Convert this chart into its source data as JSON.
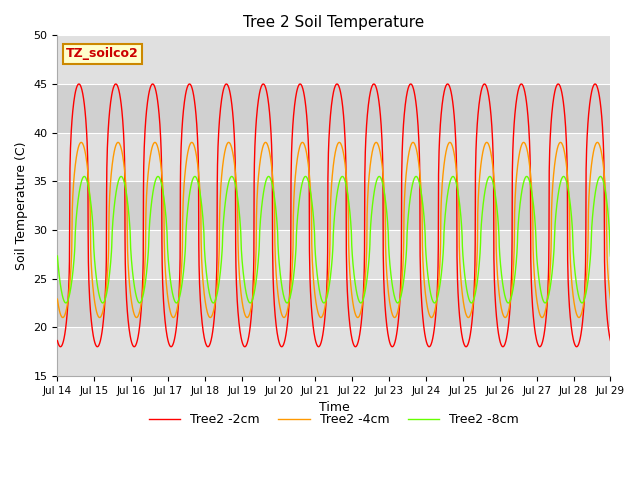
{
  "title": "Tree 2 Soil Temperature",
  "xlabel": "Time",
  "ylabel": "Soil Temperature (C)",
  "ylim": [
    15,
    50
  ],
  "yticks": [
    15,
    20,
    25,
    30,
    35,
    40,
    45,
    50
  ],
  "annotation_text": "TZ_soilco2",
  "annotation_bg": "#ffffcc",
  "annotation_border": "#cc8800",
  "annotation_text_color": "#cc0000",
  "line_colors": [
    "#ff0000",
    "#ff9900",
    "#66ff00"
  ],
  "line_labels": [
    "Tree2 -2cm",
    "Tree2 -4cm",
    "Tree2 -8cm"
  ],
  "bg_color": "#e8e8e8",
  "start_day": 14,
  "end_day": 29,
  "num_points": 2160,
  "peak_hour": 14,
  "lag_4cm_hours": 1.5,
  "lag_8cm_hours": 3.5,
  "amp_2cm": 13.5,
  "amp_4cm": 9.0,
  "amp_8cm": 6.5,
  "mean_2cm": 31.5,
  "mean_4cm": 30.0,
  "mean_8cm": 29.0,
  "sharpness": 3.0,
  "band_colors": [
    "#e0e0e0",
    "#d0d0d0"
  ],
  "grid_color": "#ffffff",
  "spine_color": "#aaaaaa",
  "figsize": [
    6.4,
    4.8
  ],
  "dpi": 100
}
